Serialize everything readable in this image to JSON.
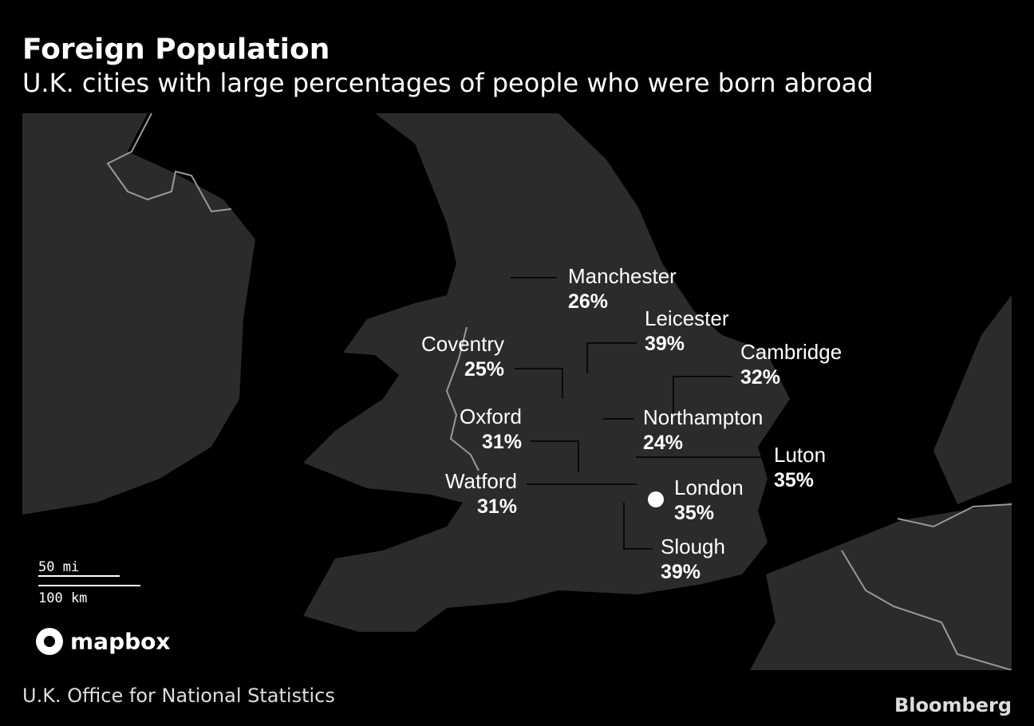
{
  "header": {
    "title": "Foreign Population",
    "subtitle": "U.K. cities with large percentages of people who were born abroad"
  },
  "cities": [
    {
      "name": "Manchester",
      "value": "26%"
    },
    {
      "name": "Leicester",
      "value": "39%"
    },
    {
      "name": "Coventry",
      "value": "25%"
    },
    {
      "name": "Cambridge",
      "value": "32%"
    },
    {
      "name": "Northampton",
      "value": "24%"
    },
    {
      "name": "Oxford",
      "value": "31%"
    },
    {
      "name": "Luton",
      "value": "35%"
    },
    {
      "name": "Watford",
      "value": "31%"
    },
    {
      "name": "London",
      "value": "35%"
    },
    {
      "name": "Slough",
      "value": "39%"
    }
  ],
  "scale": {
    "miles": "50 mi",
    "km": "100 km"
  },
  "attribution": "mapbox",
  "footer": {
    "source": "U.K. Office for National Statistics",
    "brand": "Bloomberg"
  }
}
